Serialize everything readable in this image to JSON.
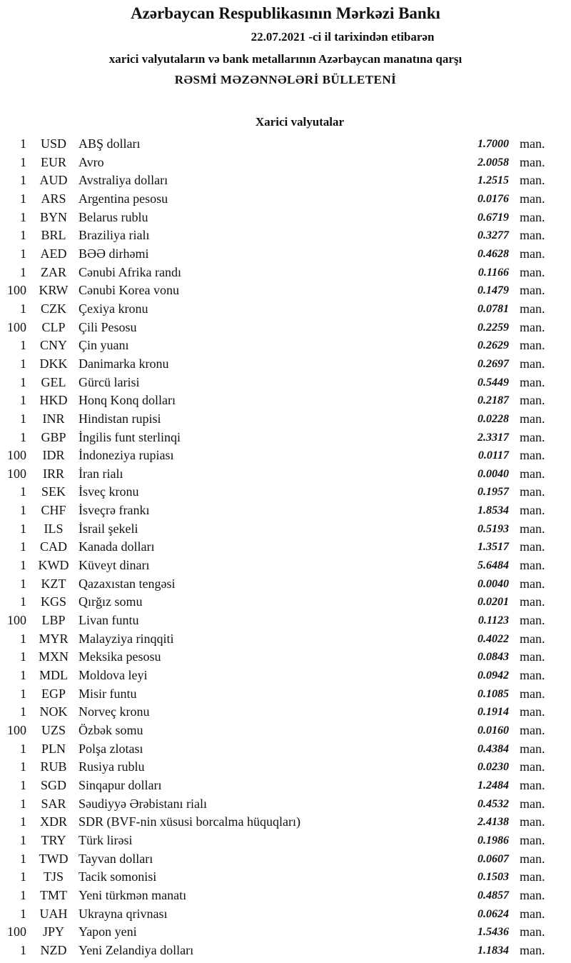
{
  "header": {
    "bank": "Azərbaycan Respublikasının Mərkəzi Bankı",
    "date_line": "22.07.2021  -ci il tarixindən etibarən",
    "subtitle": "xarici valyutaların və bank metallarının Azərbaycan manatına qarşı",
    "title": "RƏSMİ MƏZƏNNƏLƏRİ BÜLLETENİ",
    "section": "Xarici valyutalar"
  },
  "rates": [
    {
      "qty": "1",
      "code": "USD",
      "name": "ABŞ dolları",
      "rate": "1.7000",
      "unit": "man."
    },
    {
      "qty": "1",
      "code": "EUR",
      "name": "Avro",
      "rate": "2.0058",
      "unit": "man."
    },
    {
      "qty": "1",
      "code": "AUD",
      "name": "Avstraliya dolları",
      "rate": "1.2515",
      "unit": "man."
    },
    {
      "qty": "1",
      "code": "ARS",
      "name": "Argentina pesosu",
      "rate": "0.0176",
      "unit": "man."
    },
    {
      "qty": "1",
      "code": "BYN",
      "name": "Belarus rublu",
      "rate": "0.6719",
      "unit": "man."
    },
    {
      "qty": "1",
      "code": "BRL",
      "name": "Braziliya rialı",
      "rate": "0.3277",
      "unit": "man."
    },
    {
      "qty": "1",
      "code": "AED",
      "name": "BƏƏ dirhəmi",
      "rate": "0.4628",
      "unit": "man."
    },
    {
      "qty": "1",
      "code": "ZAR",
      "name": "Cənubi Afrika randı",
      "rate": "0.1166",
      "unit": "man."
    },
    {
      "qty": "100",
      "code": "KRW",
      "name": "Cənubi Korea vonu",
      "rate": "0.1479",
      "unit": "man."
    },
    {
      "qty": "1",
      "code": "CZK",
      "name": "Çexiya kronu",
      "rate": "0.0781",
      "unit": "man."
    },
    {
      "qty": "100",
      "code": "CLP",
      "name": "Çili Pesosu",
      "rate": "0.2259",
      "unit": "man."
    },
    {
      "qty": "1",
      "code": "CNY",
      "name": "Çin yuanı",
      "rate": "0.2629",
      "unit": "man."
    },
    {
      "qty": "1",
      "code": "DKK",
      "name": "Danimarka kronu",
      "rate": "0.2697",
      "unit": "man."
    },
    {
      "qty": "1",
      "code": "GEL",
      "name": "Gürcü larisi",
      "rate": "0.5449",
      "unit": "man."
    },
    {
      "qty": "1",
      "code": "HKD",
      "name": "Honq Konq dolları",
      "rate": "0.2187",
      "unit": "man."
    },
    {
      "qty": "1",
      "code": "INR",
      "name": "Hindistan rupisi",
      "rate": "0.0228",
      "unit": "man."
    },
    {
      "qty": "1",
      "code": "GBP",
      "name": "İngilis funt sterlinqi",
      "rate": "2.3317",
      "unit": "man."
    },
    {
      "qty": "100",
      "code": "IDR",
      "name": "İndoneziya rupiası",
      "rate": "0.0117",
      "unit": "man."
    },
    {
      "qty": "100",
      "code": "IRR",
      "name": "İran rialı",
      "rate": "0.0040",
      "unit": "man."
    },
    {
      "qty": "1",
      "code": "SEK",
      "name": "İsveç kronu",
      "rate": "0.1957",
      "unit": "man."
    },
    {
      "qty": "1",
      "code": "CHF",
      "name": "İsveçrə frankı",
      "rate": "1.8534",
      "unit": "man."
    },
    {
      "qty": "1",
      "code": "ILS",
      "name": "İsrail şekeli",
      "rate": "0.5193",
      "unit": "man."
    },
    {
      "qty": "1",
      "code": "CAD",
      "name": "Kanada dolları",
      "rate": "1.3517",
      "unit": "man."
    },
    {
      "qty": "1",
      "code": "KWD",
      "name": "Küveyt dinarı",
      "rate": "5.6484",
      "unit": "man."
    },
    {
      "qty": "1",
      "code": "KZT",
      "name": "Qazaxıstan tengəsi",
      "rate": "0.0040",
      "unit": "man."
    },
    {
      "qty": "1",
      "code": "KGS",
      "name": "Qırğız somu",
      "rate": "0.0201",
      "unit": "man."
    },
    {
      "qty": "100",
      "code": "LBP",
      "name": "Livan funtu",
      "rate": "0.1123",
      "unit": "man."
    },
    {
      "qty": "1",
      "code": "MYR",
      "name": "Malayziya rinqqiti",
      "rate": "0.4022",
      "unit": "man."
    },
    {
      "qty": "1",
      "code": "MXN",
      "name": "Meksika pesosu",
      "rate": "0.0843",
      "unit": "man."
    },
    {
      "qty": "1",
      "code": "MDL",
      "name": "Moldova leyi",
      "rate": "0.0942",
      "unit": "man."
    },
    {
      "qty": "1",
      "code": "EGP",
      "name": "Misir funtu",
      "rate": "0.1085",
      "unit": "man."
    },
    {
      "qty": "1",
      "code": "NOK",
      "name": "Norveç kronu",
      "rate": "0.1914",
      "unit": "man."
    },
    {
      "qty": "100",
      "code": "UZS",
      "name": "Özbək somu",
      "rate": "0.0160",
      "unit": "man."
    },
    {
      "qty": "1",
      "code": "PLN",
      "name": "Polşa zlotası",
      "rate": "0.4384",
      "unit": "man."
    },
    {
      "qty": "1",
      "code": "RUB",
      "name": "Rusiya rublu",
      "rate": "0.0230",
      "unit": "man."
    },
    {
      "qty": "1",
      "code": "SGD",
      "name": "Sinqapur dolları",
      "rate": "1.2484",
      "unit": "man."
    },
    {
      "qty": "1",
      "code": "SAR",
      "name": "Səudiyyə Ərəbistanı rialı",
      "rate": "0.4532",
      "unit": "man."
    },
    {
      "qty": "1",
      "code": "XDR",
      "name": "SDR (BVF-nin xüsusi borcalma hüquqları)",
      "rate": "2.4138",
      "unit": "man."
    },
    {
      "qty": "1",
      "code": "TRY",
      "name": "Türk lirəsi",
      "rate": "0.1986",
      "unit": "man."
    },
    {
      "qty": "1",
      "code": "TWD",
      "name": "Tayvan dolları",
      "rate": "0.0607",
      "unit": "man."
    },
    {
      "qty": "1",
      "code": "TJS",
      "name": "Tacik somonisi",
      "rate": "0.1503",
      "unit": "man."
    },
    {
      "qty": "1",
      "code": "TMT",
      "name": "Yeni türkmən manatı",
      "rate": "0.4857",
      "unit": "man."
    },
    {
      "qty": "1",
      "code": "UAH",
      "name": "Ukrayna qrivnası",
      "rate": "0.0624",
      "unit": "man."
    },
    {
      "qty": "100",
      "code": "JPY",
      "name": "Yapon yeni",
      "rate": "1.5436",
      "unit": "man."
    },
    {
      "qty": "1",
      "code": "NZD",
      "name": "Yeni Zelandiya dolları",
      "rate": "1.1834",
      "unit": "man."
    }
  ]
}
